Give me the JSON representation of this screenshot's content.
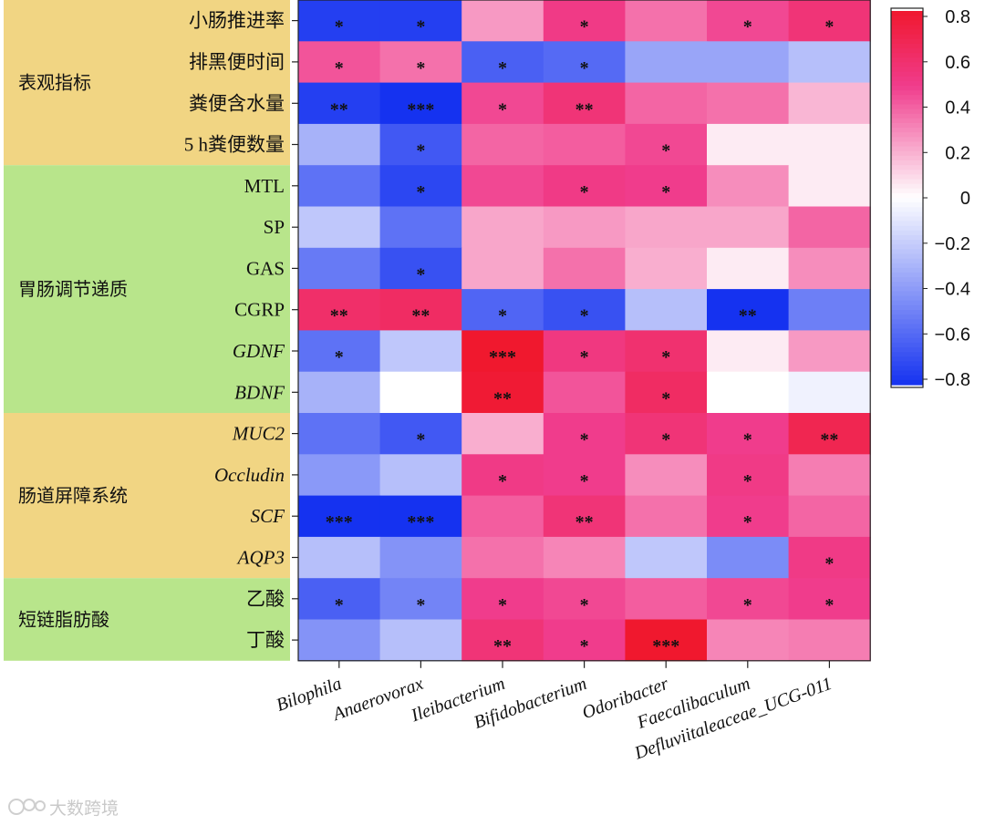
{
  "chart_data": {
    "type": "heatmap",
    "title": "",
    "columns": [
      "Bilophila",
      "Anaerovorax",
      "Ileibacterium",
      "Bifidobacterium",
      "Odoribacter",
      "Faecalibaculum",
      "Defluviitaleaceae_UCG-011"
    ],
    "rows": [
      "小肠推进率",
      "排黑便时间",
      "粪便含水量",
      "5 h粪便数量",
      "MTL",
      "SP",
      "GAS",
      "CGRP",
      "GDNF",
      "BDNF",
      "MUC2",
      "Occludin",
      "SCF",
      "AQP3",
      "乙酸",
      "丁酸"
    ],
    "italic_rows": [
      "GDNF",
      "BDNF",
      "MUC2",
      "Occludin",
      "SCF",
      "AQP3"
    ],
    "groups": [
      {
        "label": "表观指标",
        "rows": [
          "小肠推进率",
          "排黑便时间",
          "粪便含水量",
          "5 h粪便数量"
        ],
        "color": "#f1d583"
      },
      {
        "label": "胃肠调节递质",
        "rows": [
          "MTL",
          "SP",
          "GAS",
          "CGRP",
          "GDNF",
          "BDNF"
        ],
        "color": "#b8e58b"
      },
      {
        "label": "肠道屏障系统",
        "rows": [
          "MUC2",
          "Occludin",
          "SCF",
          "AQP3"
        ],
        "color": "#f1d583"
      },
      {
        "label": "短链脂肪酸",
        "rows": [
          "乙酸",
          "丁酸"
        ],
        "color": "#b8e58b"
      }
    ],
    "values": [
      [
        -0.75,
        -0.75,
        0.25,
        0.5,
        0.35,
        0.45,
        0.55
      ],
      [
        0.42,
        0.35,
        -0.62,
        -0.58,
        -0.35,
        -0.35,
        -0.25
      ],
      [
        -0.75,
        -0.82,
        0.45,
        0.55,
        0.38,
        0.35,
        0.18
      ],
      [
        -0.3,
        -0.65,
        0.38,
        0.4,
        0.45,
        0.05,
        0.05
      ],
      [
        -0.55,
        -0.72,
        0.45,
        0.5,
        0.48,
        0.28,
        0.05
      ],
      [
        -0.22,
        -0.55,
        0.22,
        0.25,
        0.22,
        0.22,
        0.38
      ],
      [
        -0.52,
        -0.68,
        0.22,
        0.35,
        0.2,
        0.05,
        0.28
      ],
      [
        0.6,
        0.62,
        -0.6,
        -0.68,
        -0.25,
        -0.8,
        -0.5
      ],
      [
        -0.55,
        -0.22,
        0.8,
        0.52,
        0.58,
        0.05,
        0.25
      ],
      [
        -0.3,
        0.0,
        0.78,
        0.42,
        0.62,
        0.0,
        -0.05
      ],
      [
        -0.55,
        -0.65,
        0.2,
        0.48,
        0.55,
        0.48,
        0.68
      ],
      [
        -0.4,
        -0.25,
        0.5,
        0.48,
        0.28,
        0.5,
        0.32
      ],
      [
        -0.82,
        -0.82,
        0.4,
        0.55,
        0.35,
        0.48,
        0.38
      ],
      [
        -0.25,
        -0.42,
        0.35,
        0.3,
        -0.22,
        -0.45,
        0.5
      ],
      [
        -0.62,
        -0.48,
        0.48,
        0.45,
        0.4,
        0.45,
        0.48
      ],
      [
        -0.42,
        -0.25,
        0.55,
        0.48,
        0.82,
        0.3,
        0.32
      ]
    ],
    "significance": [
      [
        "*",
        "*",
        "",
        "*",
        "",
        "*",
        "*"
      ],
      [
        "*",
        "*",
        "*",
        "*",
        "",
        "",
        ""
      ],
      [
        "**",
        "***",
        "*",
        "**",
        "",
        "",
        ""
      ],
      [
        "",
        "*",
        "",
        "",
        "*",
        "",
        ""
      ],
      [
        "",
        "*",
        "",
        "*",
        "*",
        "",
        ""
      ],
      [
        "",
        "",
        "",
        "",
        "",
        "",
        ""
      ],
      [
        "",
        "*",
        "",
        "",
        "",
        "",
        ""
      ],
      [
        "**",
        "**",
        "*",
        "*",
        "",
        "**",
        ""
      ],
      [
        "*",
        "",
        "***",
        "*",
        "*",
        "",
        ""
      ],
      [
        "",
        "",
        "**",
        "",
        "*",
        "",
        ""
      ],
      [
        "",
        "*",
        "",
        "*",
        "*",
        "*",
        "**"
      ],
      [
        "",
        "",
        "*",
        "*",
        "",
        "*",
        ""
      ],
      [
        "***",
        "***",
        "",
        "**",
        "",
        "*",
        ""
      ],
      [
        "",
        "",
        "",
        "",
        "",
        "",
        "*"
      ],
      [
        "*",
        "*",
        "*",
        "*",
        "",
        "*",
        "*"
      ],
      [
        "",
        "",
        "**",
        "*",
        "***",
        "",
        ""
      ]
    ],
    "colorbar": {
      "range": [
        -0.8,
        0.8
      ],
      "ticks": [
        "0.8",
        "0.6",
        "0.4",
        "0.2",
        "0",
        "−0.2",
        "−0.4",
        "−0.6",
        "−0.8"
      ],
      "colors": {
        "negative": "#1532f0",
        "zero": "#ffffff",
        "positive": "#f0182e",
        "mid_positive": "#f03c8c"
      }
    }
  },
  "watermark": "大数跨境"
}
